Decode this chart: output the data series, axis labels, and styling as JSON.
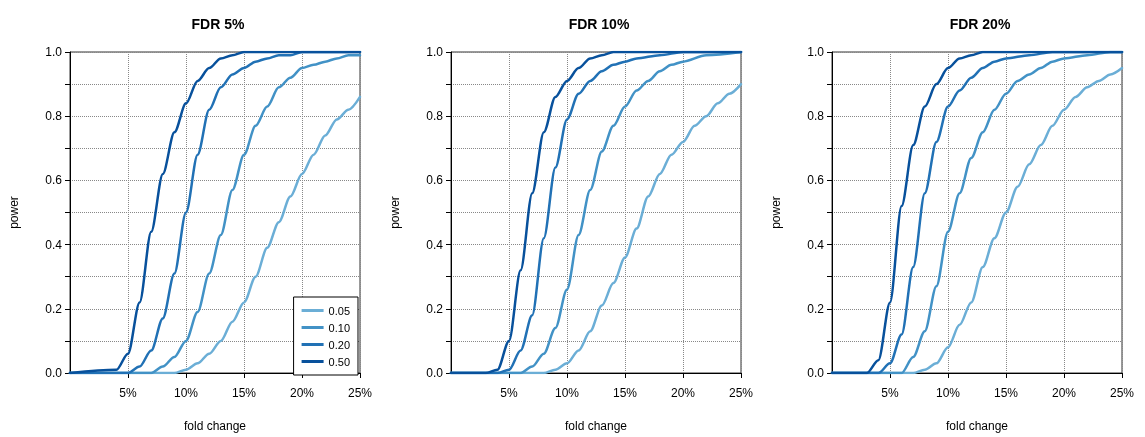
{
  "chart_data": [
    {
      "type": "line",
      "title": "FDR 5%",
      "xlabel": "fold change",
      "ylabel": "power",
      "xlim": [
        0,
        25
      ],
      "ylim": [
        0,
        1
      ],
      "xticks": [
        {
          "value": 5,
          "label": "5%"
        },
        {
          "value": 10,
          "label": "10%"
        },
        {
          "value": 15,
          "label": "15%"
        },
        {
          "value": 20,
          "label": "20%"
        },
        {
          "value": 25,
          "label": "25%"
        }
      ],
      "yticks": [
        {
          "value": 0,
          "label": "0.0"
        },
        {
          "value": 0.1,
          "label": null
        },
        0.2,
        {
          "value": 0.3,
          "label": null
        },
        0.4,
        {
          "value": 0.5,
          "label": null
        },
        0.6,
        {
          "value": 0.7,
          "label": null
        },
        0.8,
        {
          "value": 0.9,
          "label": null
        },
        {
          "value": 1,
          "label": "1.0"
        }
      ],
      "grid": true,
      "legend": "bottom right",
      "marker": "none",
      "line_style": "solid",
      "series": [
        {
          "name": "0.05",
          "color": "#6baed6",
          "x": [
            0,
            9,
            10,
            11,
            12,
            13,
            14,
            15,
            16,
            17,
            18,
            19,
            20,
            21,
            22,
            23,
            24,
            25
          ],
          "values": [
            0,
            0,
            0.01,
            0.03,
            0.06,
            0.1,
            0.16,
            0.22,
            0.3,
            0.39,
            0.47,
            0.55,
            0.62,
            0.68,
            0.74,
            0.79,
            0.82,
            0.86
          ]
        },
        {
          "name": "0.10",
          "color": "#4292c6",
          "x": [
            0,
            7,
            8,
            9,
            10,
            11,
            12,
            13,
            14,
            15,
            16,
            17,
            18,
            19,
            20,
            21,
            22,
            23,
            24,
            25
          ],
          "values": [
            0,
            0,
            0.02,
            0.05,
            0.1,
            0.19,
            0.31,
            0.43,
            0.57,
            0.68,
            0.77,
            0.83,
            0.89,
            0.92,
            0.95,
            0.96,
            0.97,
            0.98,
            0.99,
            0.99
          ]
        },
        {
          "name": "0.20",
          "color": "#2171b5",
          "x": [
            0,
            5,
            6,
            7,
            8,
            9,
            10,
            11,
            12,
            13,
            14,
            15,
            16,
            17,
            18,
            19,
            20,
            25
          ],
          "values": [
            0,
            0,
            0.02,
            0.07,
            0.17,
            0.31,
            0.5,
            0.68,
            0.82,
            0.89,
            0.93,
            0.95,
            0.97,
            0.98,
            0.99,
            0.99,
            1,
            1
          ]
        },
        {
          "name": "0.50",
          "color": "#08519c",
          "x": [
            0,
            4,
            5,
            6,
            7,
            8,
            9,
            10,
            11,
            12,
            13,
            14,
            15,
            25
          ],
          "values": [
            0,
            0.01,
            0.06,
            0.22,
            0.44,
            0.62,
            0.75,
            0.84,
            0.91,
            0.95,
            0.98,
            0.99,
            1,
            1
          ]
        }
      ]
    },
    {
      "type": "line",
      "title": "FDR 10%",
      "xlabel": "fold change",
      "ylabel": "power",
      "xlim": [
        0,
        25
      ],
      "ylim": [
        0,
        1
      ],
      "xticks": [
        {
          "value": 5,
          "label": "5%"
        },
        {
          "value": 10,
          "label": "10%"
        },
        {
          "value": 15,
          "label": "15%"
        },
        {
          "value": 20,
          "label": "20%"
        },
        {
          "value": 25,
          "label": "25%"
        }
      ],
      "yticks": [
        {
          "value": 0,
          "label": "0.0"
        },
        {
          "value": 0.1,
          "label": null
        },
        0.2,
        {
          "value": 0.3,
          "label": null
        },
        0.4,
        {
          "value": 0.5,
          "label": null
        },
        0.6,
        {
          "value": 0.7,
          "label": null
        },
        0.8,
        {
          "value": 0.9,
          "label": null
        },
        {
          "value": 1,
          "label": "1.0"
        }
      ],
      "grid": true,
      "marker": "none",
      "line_style": "solid",
      "series": [
        {
          "color": "#6baed6",
          "x": [
            0,
            8,
            9,
            10,
            11,
            12,
            13,
            14,
            15,
            16,
            17,
            18,
            19,
            20,
            21,
            22,
            23,
            24,
            25
          ],
          "values": [
            0,
            0,
            0.01,
            0.03,
            0.07,
            0.13,
            0.21,
            0.28,
            0.36,
            0.45,
            0.55,
            0.62,
            0.68,
            0.72,
            0.77,
            0.8,
            0.84,
            0.87,
            0.9
          ]
        },
        {
          "color": "#4292c6",
          "x": [
            0,
            6,
            7,
            8,
            9,
            10,
            11,
            12,
            13,
            14,
            15,
            16,
            17,
            18,
            19,
            20,
            22,
            25
          ],
          "values": [
            0,
            0,
            0.02,
            0.06,
            0.14,
            0.26,
            0.43,
            0.57,
            0.69,
            0.77,
            0.83,
            0.88,
            0.91,
            0.94,
            0.96,
            0.97,
            0.99,
            1
          ]
        },
        {
          "color": "#2171b5",
          "x": [
            0,
            4,
            5,
            6,
            7,
            8,
            9,
            10,
            11,
            12,
            13,
            14,
            15,
            16,
            18,
            20,
            25
          ],
          "values": [
            0,
            0,
            0.01,
            0.07,
            0.18,
            0.42,
            0.64,
            0.79,
            0.87,
            0.91,
            0.94,
            0.96,
            0.97,
            0.98,
            0.99,
            1,
            1
          ]
        },
        {
          "color": "#08519c",
          "x": [
            0,
            3,
            4,
            5,
            6,
            7,
            8,
            9,
            10,
            11,
            12,
            13,
            14,
            25
          ],
          "values": [
            0,
            0,
            0.01,
            0.1,
            0.32,
            0.56,
            0.75,
            0.86,
            0.91,
            0.95,
            0.98,
            0.99,
            1,
            1
          ]
        }
      ]
    },
    {
      "type": "line",
      "title": "FDR 20%",
      "xlabel": "fold change",
      "ylabel": "power",
      "xlim": [
        0,
        25
      ],
      "ylim": [
        0,
        1
      ],
      "xticks": [
        {
          "value": 5,
          "label": "5%"
        },
        {
          "value": 10,
          "label": "10%"
        },
        {
          "value": 15,
          "label": "15%"
        },
        {
          "value": 20,
          "label": "20%"
        },
        {
          "value": 25,
          "label": "25%"
        }
      ],
      "yticks": [
        {
          "value": 0,
          "label": "0.0"
        },
        {
          "value": 0.1,
          "label": null
        },
        0.2,
        {
          "value": 0.3,
          "label": null
        },
        0.4,
        {
          "value": 0.5,
          "label": null
        },
        0.6,
        {
          "value": 0.7,
          "label": null
        },
        0.8,
        {
          "value": 0.9,
          "label": null
        },
        {
          "value": 1,
          "label": "1.0"
        }
      ],
      "grid": true,
      "marker": "none",
      "line_style": "solid",
      "series": [
        {
          "color": "#6baed6",
          "x": [
            0,
            7,
            8,
            9,
            10,
            11,
            12,
            13,
            14,
            15,
            16,
            17,
            18,
            19,
            20,
            21,
            22,
            23,
            24,
            25
          ],
          "values": [
            0,
            0,
            0.01,
            0.03,
            0.08,
            0.15,
            0.22,
            0.33,
            0.42,
            0.5,
            0.58,
            0.65,
            0.71,
            0.77,
            0.82,
            0.86,
            0.89,
            0.91,
            0.93,
            0.95
          ]
        },
        {
          "color": "#4292c6",
          "x": [
            0,
            6,
            7,
            8,
            9,
            10,
            11,
            12,
            13,
            14,
            15,
            16,
            17,
            18,
            19,
            20,
            22,
            24,
            25
          ],
          "values": [
            0,
            0,
            0.05,
            0.13,
            0.27,
            0.44,
            0.56,
            0.67,
            0.75,
            0.82,
            0.87,
            0.91,
            0.93,
            0.95,
            0.97,
            0.98,
            0.99,
            1,
            1
          ]
        },
        {
          "color": "#2171b5",
          "x": [
            0,
            4,
            5,
            6,
            7,
            8,
            9,
            10,
            11,
            12,
            13,
            14,
            15,
            17,
            19,
            25
          ],
          "values": [
            0,
            0,
            0.03,
            0.12,
            0.33,
            0.56,
            0.72,
            0.83,
            0.88,
            0.92,
            0.95,
            0.97,
            0.98,
            0.99,
            1,
            1
          ]
        },
        {
          "color": "#08519c",
          "x": [
            0,
            3,
            4,
            5,
            6,
            7,
            8,
            9,
            10,
            11,
            12,
            13,
            25
          ],
          "values": [
            0,
            0,
            0.04,
            0.22,
            0.52,
            0.71,
            0.83,
            0.9,
            0.95,
            0.98,
            0.99,
            1,
            1
          ]
        }
      ]
    }
  ]
}
